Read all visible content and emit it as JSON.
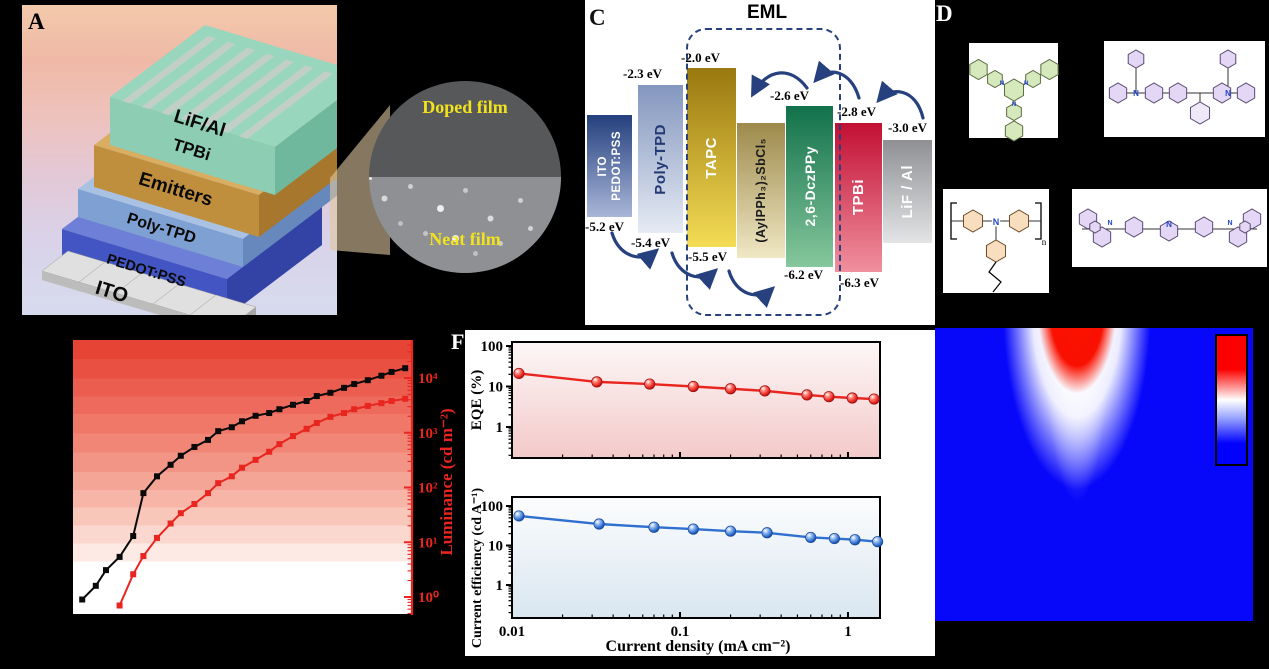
{
  "colors": {
    "accent_red": "#e8251f",
    "accent_blue": "#2f6fd0",
    "arrow_navy": "#26417e",
    "inset_label_yellow": "#f2e31c",
    "heatmap_base": "#0707fa"
  },
  "panel_a": {
    "label": "A",
    "layer_labels": [
      "LiF/Al",
      "TPBi",
      "Emitters",
      "Poly-TPD",
      "PEDOT:PSS",
      "ITO"
    ]
  },
  "inset": {
    "doped_label": "Doped film",
    "neat_label": "Neat film"
  },
  "panel_c": {
    "label": "C",
    "eml_label": "EML",
    "bars": [
      {
        "name": "ITO / PEDOT:PSS",
        "lines": [
          "ITO",
          "PEDOT:PSS"
        ],
        "top_ev": "",
        "bottom_ev": "-5.2 eV"
      },
      {
        "name": "Poly-TPD",
        "lines": [
          "Poly-TPD"
        ],
        "top_ev": "-2.3 eV",
        "bottom_ev": "-5.4 eV"
      },
      {
        "name": "TAPC",
        "lines": [
          "TAPC"
        ],
        "top_ev": "-2.0 eV",
        "bottom_ev": "-5.5 eV"
      },
      {
        "name": "(AylPPh₃)₂SbCl₅",
        "lines": [
          "(AylPPh₃)₂SbCl₅"
        ],
        "top_ev": "",
        "bottom_ev": ""
      },
      {
        "name": "2,6-DczPPy",
        "lines": [
          "2,6-DczPPy"
        ],
        "top_ev": "-2.6 eV",
        "bottom_ev": "-6.2 eV"
      },
      {
        "name": "TPBi",
        "lines": [
          "TPBi"
        ],
        "top_ev": "-2.8 eV",
        "bottom_ev": "-6.3 eV"
      },
      {
        "name": "LiF / Al",
        "lines": [
          "LiF / Al"
        ],
        "top_ev": "-3.0 eV",
        "bottom_ev": ""
      }
    ]
  },
  "panel_d": {
    "label": "D",
    "atom_label": "N",
    "polymer_subscript": "n"
  },
  "panel_f_label": "F",
  "chart_data": [
    {
      "type": "line",
      "name": "luminance-voltage-curves",
      "right_ylabel": "Luminance (cd m⁻²)",
      "right_yticks": [
        "10⁰",
        "10¹",
        "10²",
        "10³",
        "10⁴"
      ],
      "xlabel": "",
      "ylabel": "",
      "y_scale": "log",
      "y_axis_range_log10": [
        -0.33,
        4.69
      ],
      "x_axis_note": "x tick labels not visible in image; x given as fraction of axis width",
      "series": [
        {
          "name": "doped-device-black",
          "color": "#0a0a0a",
          "marker": "square",
          "x_frac": [
            0.03,
            0.07,
            0.1,
            0.14,
            0.18,
            0.21,
            0.25,
            0.29,
            0.32,
            0.36,
            0.4,
            0.43,
            0.47,
            0.5,
            0.54,
            0.58,
            0.61,
            0.65,
            0.69,
            0.72,
            0.76,
            0.8,
            0.83,
            0.87,
            0.91,
            0.94,
            0.98
          ],
          "luminance": [
            0.9,
            1.6,
            3.1,
            5.4,
            13,
            79,
            160,
            260,
            380,
            550,
            740,
            1070,
            1260,
            1620,
            2040,
            2290,
            2690,
            3240,
            3800,
            4680,
            5370,
            6610,
            7760,
            9120,
            11000,
            12900,
            15100
          ]
        },
        {
          "name": "neat-device-red",
          "color": "#e8251f",
          "marker": "square",
          "x_frac": [
            0.14,
            0.18,
            0.21,
            0.25,
            0.29,
            0.32,
            0.36,
            0.4,
            0.43,
            0.47,
            0.5,
            0.54,
            0.58,
            0.61,
            0.65,
            0.69,
            0.72,
            0.76,
            0.8,
            0.83,
            0.87,
            0.91,
            0.94,
            0.98
          ],
          "luminance": [
            0.7,
            2.6,
            5.6,
            12,
            22,
            34,
            50,
            79,
            120,
            160,
            230,
            320,
            450,
            620,
            870,
            1180,
            1510,
            1950,
            2290,
            2690,
            3090,
            3470,
            3800,
            4170
          ]
        }
      ]
    },
    {
      "type": "line",
      "name": "eqe-vs-current-density",
      "ylabel": "EQE (%)",
      "yticks": [
        "100",
        "10",
        "1"
      ],
      "xticks": [
        "0.01",
        "0.1",
        "1"
      ],
      "x_scale": "log",
      "y_scale": "log",
      "x_range": [
        0.01,
        1.55
      ],
      "y_range": [
        0.17,
        125
      ],
      "color": "#e8251f",
      "marker": "sphere",
      "x": [
        0.011,
        0.032,
        0.066,
        0.12,
        0.2,
        0.32,
        0.57,
        0.77,
        1.06,
        1.43
      ],
      "values": [
        21,
        13,
        11.5,
        10,
        8.8,
        7.8,
        6.2,
        5.6,
        5.2,
        4.9
      ]
    },
    {
      "type": "line",
      "name": "current-efficiency-vs-current-density",
      "ylabel": "Current efficiency (cd A⁻¹)",
      "xlabel": "Current density (mA cm⁻²)",
      "yticks": [
        "100",
        "10",
        "1"
      ],
      "xticks": [
        "0.01",
        "0.1",
        "1"
      ],
      "x_scale": "log",
      "y_scale": "log",
      "x_range": [
        0.01,
        1.55
      ],
      "y_range": [
        0.15,
        170
      ],
      "color": "#2f6fd0",
      "marker": "sphere",
      "x": [
        0.011,
        0.033,
        0.07,
        0.12,
        0.2,
        0.33,
        0.6,
        0.83,
        1.1,
        1.5
      ],
      "values": [
        56,
        35,
        29,
        26,
        23,
        21,
        16,
        15,
        14,
        12.5
      ]
    },
    {
      "type": "heatmap",
      "name": "emission-intensity-map",
      "base_color": "#0707fa",
      "colorbar_colors": [
        "#fc0000",
        "#ffffff",
        "#0000ff"
      ],
      "hotspot": {
        "x_frac": 0.447,
        "y_frac": 0.0,
        "red_depth_frac": 0.3,
        "white_depth_frac": 0.78
      }
    }
  ]
}
